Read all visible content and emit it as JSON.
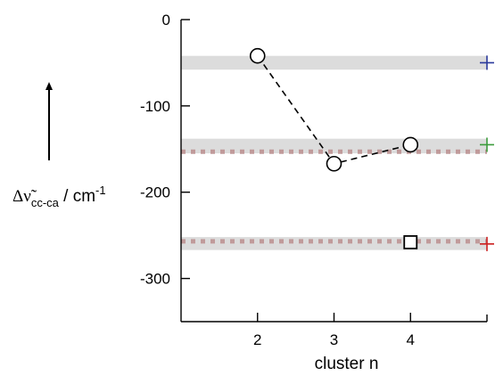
{
  "chart_data": {
    "type": "scatter",
    "xlabel": "cluster n",
    "ylabel": {
      "prefix": "Δ",
      "symbol": "ν̃",
      "subscript": "cc-ca",
      "unit_text": " / cm",
      "superscript": "-1"
    },
    "xlim": [
      1,
      5
    ],
    "ylim": [
      -350,
      0
    ],
    "xticks": [
      2,
      3,
      4
    ],
    "xtick_labels": [
      "2",
      "3",
      "4"
    ],
    "yticks": [
      0,
      -100,
      -200,
      -300
    ],
    "ytick_labels": [
      "0",
      "-100",
      "-200",
      "-300"
    ],
    "grid": false,
    "series": [
      {
        "marker": "circle",
        "linestyle": "dashed",
        "color": "#000000",
        "points": [
          {
            "x": 2,
            "y": -42
          },
          {
            "x": 3,
            "y": -167
          },
          {
            "x": 4,
            "y": -145
          }
        ]
      },
      {
        "marker": "square",
        "linestyle": "none",
        "color": "#000000",
        "points": [
          {
            "x": 4,
            "y": -258
          }
        ]
      }
    ],
    "reference_bands": [
      {
        "y_from": -58,
        "y_to": -42,
        "color": "#dcdcdc"
      },
      {
        "y_from": -155,
        "y_to": -138,
        "color": "#dcdcdc"
      },
      {
        "y_from": -267,
        "y_to": -252,
        "color": "#dcdcdc"
      }
    ],
    "reference_dotted_lines": [
      {
        "y": -153,
        "color": "#c09a9a"
      },
      {
        "y": -257,
        "color": "#c09a9a"
      }
    ],
    "edge_markers": [
      {
        "x": 5,
        "y": -50,
        "marker": "plus",
        "color": "#2b3a9c"
      },
      {
        "x": 5,
        "y": -145,
        "marker": "plus",
        "color": "#3c9c3c"
      },
      {
        "x": 5,
        "y": -260,
        "marker": "plus",
        "color": "#cc2020"
      }
    ],
    "arrow": {
      "direction": "up",
      "color": "#000000"
    }
  }
}
